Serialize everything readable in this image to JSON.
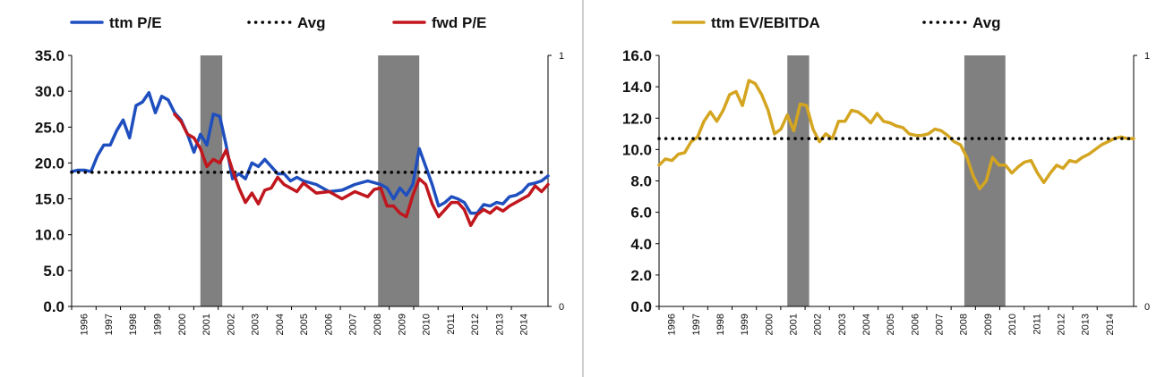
{
  "chart_data": [
    {
      "type": "line",
      "series": [
        {
          "name": "ttm P/E",
          "color": "#1f4fbf",
          "style": "solid",
          "x": [
            1996.0,
            1996.25,
            1996.5,
            1996.75,
            1997.0,
            1997.25,
            1997.5,
            1997.75,
            1998.0,
            1998.25,
            1998.5,
            1998.75,
            1999.0,
            1999.25,
            1999.5,
            1999.75,
            2000.0,
            2000.25,
            2000.5,
            2000.75,
            2001.0,
            2001.25,
            2001.5,
            2001.75,
            2002.0,
            2002.25,
            2002.5,
            2002.75,
            2003.0,
            2003.25,
            2003.5,
            2003.75,
            2004.0,
            2004.25,
            2004.5,
            2004.75,
            2005.0,
            2005.5,
            2006.0,
            2006.5,
            2007.0,
            2007.5,
            2008.0,
            2008.25,
            2008.5,
            2008.75,
            2009.0,
            2009.25,
            2009.5,
            2009.75,
            2010.0,
            2010.25,
            2010.5,
            2010.75,
            2011.0,
            2011.25,
            2011.5,
            2011.75,
            2012.0,
            2012.25,
            2012.5,
            2012.75,
            2013.0,
            2013.25,
            2013.5,
            2013.75,
            2014.0,
            2014.25,
            2014.5
          ],
          "y": [
            18.8,
            19.0,
            19.0,
            18.8,
            21.0,
            22.5,
            22.5,
            24.5,
            26.0,
            23.5,
            28.0,
            28.5,
            29.8,
            27.0,
            29.3,
            28.8,
            27.0,
            26.0,
            24.0,
            21.5,
            24.0,
            22.5,
            26.8,
            26.5,
            22.5,
            17.8,
            18.5,
            17.8,
            20.0,
            19.5,
            20.5,
            19.5,
            18.5,
            18.5,
            17.5,
            18.0,
            17.5,
            17.0,
            16.0,
            16.2,
            17.0,
            17.5,
            17.0,
            16.5,
            15.0,
            16.5,
            15.5,
            17.0,
            22.0,
            19.5,
            17.0,
            14.0,
            14.5,
            15.3,
            15.0,
            14.5,
            13.0,
            13.0,
            14.2,
            14.0,
            14.5,
            14.3,
            15.3,
            15.5,
            16.0,
            17.0,
            17.2,
            17.5,
            18.2
          ]
        },
        {
          "name": "Avg",
          "color": "#000000",
          "style": "dotted",
          "x": [
            1996.0,
            2014.5
          ],
          "y": [
            18.7,
            18.7
          ]
        },
        {
          "name": "fwd P/E",
          "color": "#c0161d",
          "style": "solid",
          "x": [
            2000.0,
            2000.25,
            2000.5,
            2000.75,
            2001.0,
            2001.25,
            2001.5,
            2001.75,
            2002.0,
            2002.25,
            2002.5,
            2002.75,
            2003.0,
            2003.25,
            2003.5,
            2003.75,
            2004.0,
            2004.25,
            2004.5,
            2004.75,
            2005.0,
            2005.5,
            2006.0,
            2006.5,
            2007.0,
            2007.5,
            2007.75,
            2008.0,
            2008.25,
            2008.5,
            2008.75,
            2009.0,
            2009.25,
            2009.5,
            2009.75,
            2010.0,
            2010.25,
            2010.5,
            2010.75,
            2011.0,
            2011.25,
            2011.5,
            2011.75,
            2012.0,
            2012.25,
            2012.5,
            2012.75,
            2013.0,
            2013.25,
            2013.5,
            2013.75,
            2014.0,
            2014.25,
            2014.5
          ],
          "y": [
            26.8,
            25.8,
            24.0,
            23.5,
            22.0,
            19.5,
            20.5,
            20.0,
            21.8,
            19.0,
            16.5,
            14.5,
            15.8,
            14.3,
            16.2,
            16.5,
            18.0,
            17.0,
            16.5,
            16.0,
            17.2,
            15.8,
            16.0,
            15.0,
            16.0,
            15.3,
            16.3,
            16.5,
            14.0,
            14.0,
            13.0,
            12.5,
            15.5,
            17.8,
            17.0,
            14.3,
            12.5,
            13.5,
            14.5,
            14.5,
            13.5,
            11.3,
            12.8,
            13.5,
            13.0,
            13.8,
            13.3,
            14.0,
            14.5,
            15.0,
            15.5,
            16.8,
            16.0,
            17.0
          ]
        }
      ],
      "x_tick_labels": [
        "1996",
        "1997",
        "1998",
        "1999",
        "2000",
        "2001",
        "2002",
        "2003",
        "2004",
        "2005",
        "2006",
        "2007",
        "2008",
        "2009",
        "2010",
        "2011",
        "2012",
        "2013",
        "2014"
      ],
      "y_tick_labels": [
        "0.0",
        "5.0",
        "10.0",
        "15.0",
        "20.0",
        "25.0",
        "30.0",
        "35.0"
      ],
      "y2_tick_labels": [
        "0",
        "1"
      ],
      "xlim": [
        1996,
        2014.5
      ],
      "ylim": [
        0,
        35
      ],
      "recessions": [
        [
          2001.0,
          2001.85
        ],
        [
          2007.9,
          2009.5
        ]
      ],
      "recession_color": "#808080",
      "grid": "none",
      "legend": "top"
    },
    {
      "type": "line",
      "series": [
        {
          "name": "ttm EV/EBITDA",
          "color": "#d4a520",
          "style": "solid",
          "x": [
            1996.0,
            1996.25,
            1996.5,
            1996.75,
            1997.0,
            1997.25,
            1997.5,
            1997.75,
            1998.0,
            1998.25,
            1998.5,
            1998.75,
            1999.0,
            1999.25,
            1999.5,
            1999.75,
            2000.0,
            2000.25,
            2000.5,
            2000.75,
            2001.0,
            2001.25,
            2001.5,
            2001.75,
            2002.0,
            2002.25,
            2002.5,
            2002.75,
            2003.0,
            2003.25,
            2003.5,
            2003.75,
            2004.0,
            2004.25,
            2004.5,
            2004.75,
            2005.0,
            2005.25,
            2005.5,
            2005.75,
            2006.0,
            2006.25,
            2006.5,
            2006.75,
            2007.0,
            2007.25,
            2007.5,
            2007.75,
            2008.0,
            2008.25,
            2008.5,
            2008.75,
            2009.0,
            2009.25,
            2009.5,
            2009.75,
            2010.0,
            2010.25,
            2010.5,
            2010.75,
            2011.0,
            2011.25,
            2011.5,
            2011.75,
            2012.0,
            2012.25,
            2012.5,
            2012.75,
            2013.0,
            2013.25,
            2013.5,
            2013.75,
            2014.0,
            2014.25,
            2014.5
          ],
          "y": [
            9.0,
            9.4,
            9.3,
            9.7,
            9.8,
            10.5,
            10.8,
            11.8,
            12.4,
            11.8,
            12.5,
            13.5,
            13.7,
            12.8,
            14.4,
            14.2,
            13.5,
            12.5,
            11.0,
            11.3,
            12.2,
            11.2,
            12.9,
            12.8,
            11.3,
            10.5,
            11.0,
            10.7,
            11.8,
            11.8,
            12.5,
            12.4,
            12.1,
            11.7,
            12.3,
            11.8,
            11.7,
            11.5,
            11.4,
            11.0,
            10.9,
            10.9,
            11.0,
            11.3,
            11.2,
            10.9,
            10.5,
            10.3,
            9.5,
            8.3,
            7.5,
            8.0,
            9.5,
            9.0,
            9.0,
            8.5,
            8.9,
            9.2,
            9.3,
            8.5,
            7.9,
            8.5,
            9.0,
            8.8,
            9.3,
            9.2,
            9.5,
            9.7,
            10.0,
            10.3,
            10.5,
            10.7,
            10.8,
            10.7,
            10.7
          ]
        },
        {
          "name": "Avg",
          "color": "#000000",
          "style": "dotted",
          "x": [
            1996.0,
            2014.5
          ],
          "y": [
            10.7,
            10.7
          ]
        }
      ],
      "x_tick_labels": [
        "1996",
        "1997",
        "1998",
        "1999",
        "2000",
        "2001",
        "2002",
        "2003",
        "2004",
        "2005",
        "2006",
        "2007",
        "2008",
        "2009",
        "2010",
        "2011",
        "2012",
        "2013",
        "2014"
      ],
      "y_tick_labels": [
        "0.0",
        "2.0",
        "4.0",
        "6.0",
        "8.0",
        "10.0",
        "12.0",
        "14.0",
        "16.0"
      ],
      "y2_tick_labels": [
        "0",
        "1"
      ],
      "xlim": [
        1996,
        2014.5
      ],
      "ylim": [
        0,
        16
      ],
      "recessions": [
        [
          2001.0,
          2001.85
        ],
        [
          2007.9,
          2009.5
        ]
      ],
      "recession_color": "#808080",
      "grid": "none",
      "legend": "top"
    }
  ]
}
